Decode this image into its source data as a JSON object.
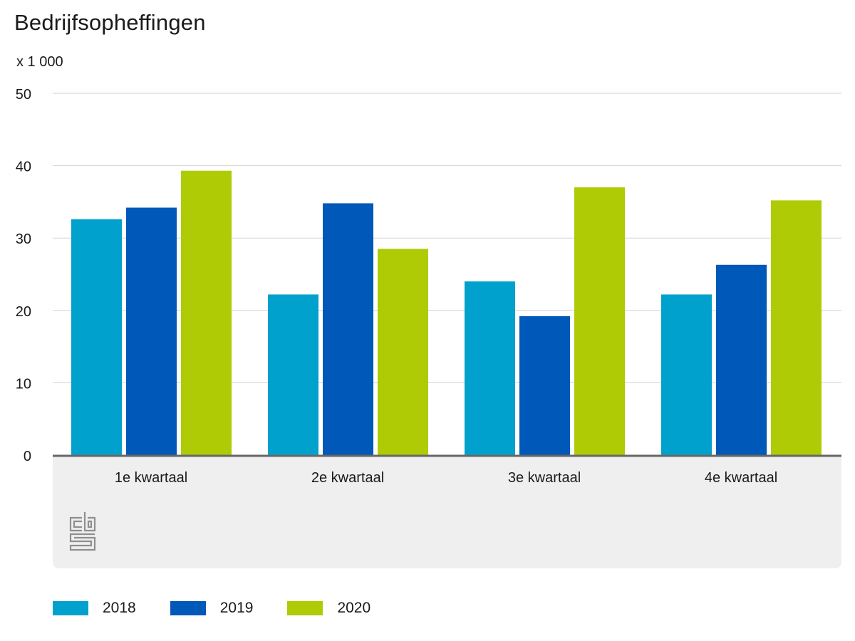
{
  "title": "Bedrijfsopheffingen",
  "unit_label": "x 1 000",
  "colors": {
    "2018": "#00a1cd",
    "2019": "#0058b8",
    "2020": "#afcb05",
    "gridline": "#d2d2d2",
    "axis": "#666666",
    "footer_bg": "#efefef",
    "logo": "#8f8f8f"
  },
  "logo_icon": "cbs-logo-icon",
  "chart_data": {
    "type": "bar",
    "title": "Bedrijfsopheffingen",
    "ylabel": "x 1 000",
    "xlabel": "",
    "ylim": [
      0,
      50
    ],
    "yticks": [
      0,
      10,
      20,
      30,
      40,
      50
    ],
    "grid": true,
    "legend_position": "bottom-left",
    "categories": [
      "1e kwartaal",
      "2e kwartaal",
      "3e kwartaal",
      "4e kwartaal"
    ],
    "series": [
      {
        "name": "2018",
        "color": "#00a1cd",
        "values": [
          32.6,
          22.2,
          24.0,
          22.2
        ]
      },
      {
        "name": "2019",
        "color": "#0058b8",
        "values": [
          34.2,
          34.8,
          19.2,
          26.3
        ]
      },
      {
        "name": "2020",
        "color": "#afcb05",
        "values": [
          39.3,
          28.5,
          37.0,
          35.2
        ]
      }
    ]
  }
}
